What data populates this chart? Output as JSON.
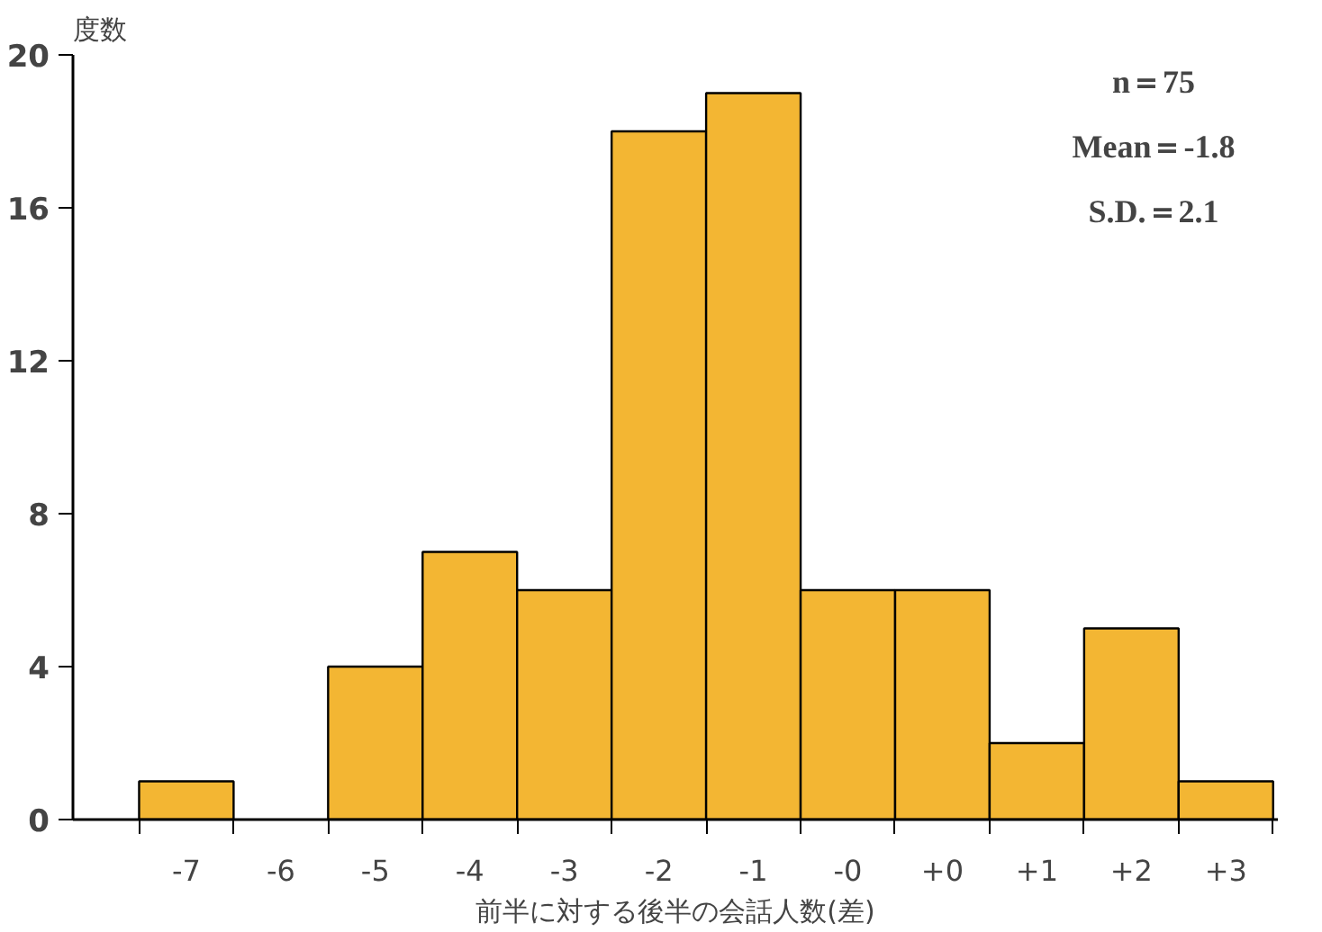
{
  "chart_data": {
    "type": "bar",
    "ylabel": "度数",
    "xlabel": "前半に対する後半の会話人数(差)",
    "categories": [
      "-7",
      "-6",
      "-5",
      "-4",
      "-3",
      "-2",
      "-1",
      "-0",
      "+0",
      "+1",
      "+2",
      "+3"
    ],
    "values": [
      1,
      0,
      4,
      7,
      6,
      18,
      19,
      6,
      6,
      2,
      5,
      1
    ],
    "color": "#f3b633",
    "ylim": [
      0,
      20
    ],
    "yticks": [
      0,
      4,
      8,
      12,
      16,
      20
    ],
    "grid": false,
    "annotations": [
      "n＝75",
      "Mean＝-1.8",
      "S.D.＝2.1"
    ]
  }
}
